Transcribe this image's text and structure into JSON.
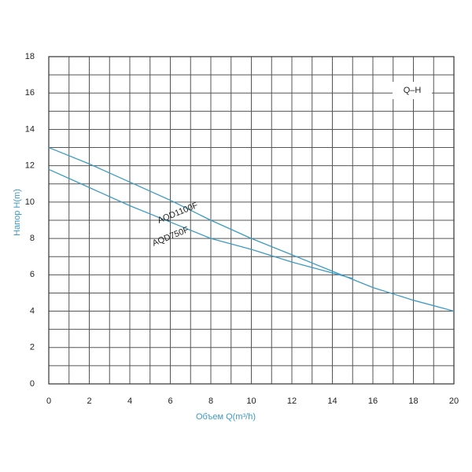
{
  "chart_data": {
    "type": "line",
    "annotation": "Q–H",
    "xlabel": "Объем Q(m³/h)",
    "ylabel": "Напор H(m)",
    "x": [
      0,
      2,
      4,
      6,
      8,
      10,
      12,
      14,
      15,
      16,
      18,
      20
    ],
    "series": [
      {
        "name": "AQD1100F",
        "color": "#3d9bc3",
        "values": [
          13.0,
          12.1,
          11.1,
          10.1,
          9.0,
          8.0,
          7.1,
          6.2,
          5.75,
          5.3,
          4.6,
          4.0
        ]
      },
      {
        "name": "AQD750F",
        "color": "#3d9bc3",
        "values": [
          11.8,
          10.8,
          9.8,
          8.9,
          8.0,
          7.4,
          6.7,
          6.1,
          5.8,
          null,
          null,
          null
        ]
      }
    ],
    "xlim": [
      0,
      20
    ],
    "xticks": [
      0,
      2,
      4,
      6,
      8,
      10,
      12,
      14,
      16,
      18,
      20
    ],
    "ylim": [
      0,
      18
    ],
    "yticks": [
      0,
      2,
      4,
      6,
      8,
      10,
      12,
      14,
      16,
      18
    ],
    "grid": true
  }
}
